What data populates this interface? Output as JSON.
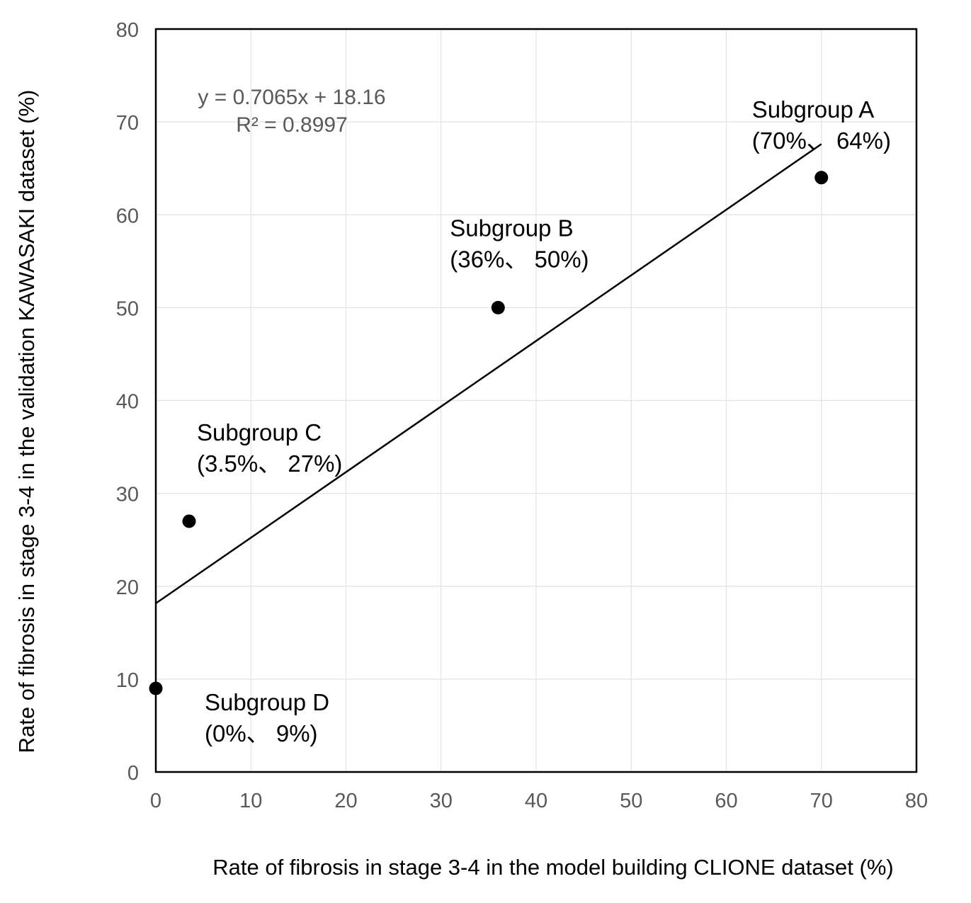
{
  "chart_data": {
    "type": "scatter",
    "title": "",
    "xlabel": "Rate of fibrosis in stage 3-4 in the model building CLIONE dataset (%)",
    "ylabel": "Rate of fibrosis in stage 3-4 in the validation KAWASAKI dataset (%)",
    "xlim": [
      0,
      80
    ],
    "ylim": [
      0,
      80
    ],
    "xticks": [
      0,
      10,
      20,
      30,
      40,
      50,
      60,
      70,
      80
    ],
    "yticks": [
      0,
      10,
      20,
      30,
      40,
      50,
      60,
      70,
      80
    ],
    "grid": true,
    "points": [
      {
        "x": 70,
        "y": 64,
        "name": "Subgroup A",
        "coords": "(70%、 64%)"
      },
      {
        "x": 36,
        "y": 50,
        "name": "Subgroup B",
        "coords": "(36%、 50%)"
      },
      {
        "x": 3.5,
        "y": 27,
        "name": "Subgroup C",
        "coords": "(3.5%、 27%)"
      },
      {
        "x": 0,
        "y": 9,
        "name": "Subgroup D",
        "coords": "(0%、 9%)"
      }
    ],
    "trendline": {
      "type": "linear",
      "slope": 0.7065,
      "intercept": 18.16,
      "x_range": [
        0,
        70
      ]
    },
    "equation_text": "y = 0.7065x + 18.16",
    "r2_text": "R² = 0.8997"
  }
}
